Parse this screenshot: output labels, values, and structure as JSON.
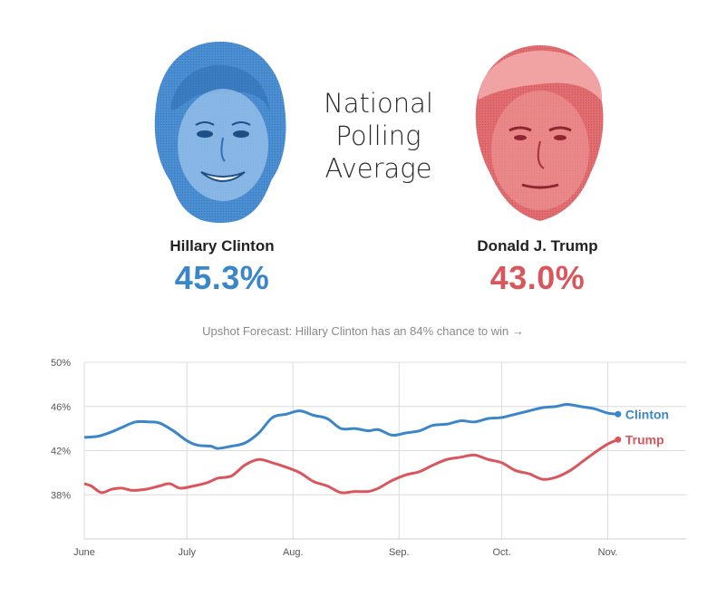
{
  "headline": {
    "line1": "National",
    "line2": "Polling",
    "line3": "Average"
  },
  "candidates": {
    "clinton": {
      "name": "Hillary Clinton",
      "pct": "45.3%",
      "color": "#3b86c9"
    },
    "trump": {
      "name": "Donald J. Trump",
      "pct": "43.0%",
      "color": "#d9575c"
    }
  },
  "forecast_link": "Upshot Forecast: Hillary Clinton has an 84% chance to win →",
  "chart_data": {
    "type": "line",
    "x_axis": "date",
    "ylim": [
      34,
      50
    ],
    "y_ticks": [
      50,
      46,
      42,
      38
    ],
    "y_tick_labels": [
      "50%",
      "46%",
      "42%",
      "38%"
    ],
    "x_ticks": [
      "2016-06-01",
      "2016-07-01",
      "2016-08-01",
      "2016-09-01",
      "2016-10-01",
      "2016-11-01"
    ],
    "x_tick_labels": [
      "June",
      "July",
      "Aug.",
      "Sep.",
      "Oct.",
      "Nov."
    ],
    "grid": true,
    "legend": "inline-right",
    "series": [
      {
        "name": "Clinton",
        "color": "#3b86c9",
        "points": [
          [
            "2016-06-01",
            43.2
          ],
          [
            "2016-06-05",
            43.3
          ],
          [
            "2016-06-09",
            43.7
          ],
          [
            "2016-06-12",
            44.1
          ],
          [
            "2016-06-16",
            44.6
          ],
          [
            "2016-06-20",
            44.6
          ],
          [
            "2016-06-23",
            44.5
          ],
          [
            "2016-06-27",
            43.8
          ],
          [
            "2016-07-01",
            42.9
          ],
          [
            "2016-07-04",
            42.5
          ],
          [
            "2016-07-08",
            42.4
          ],
          [
            "2016-07-10",
            42.2
          ],
          [
            "2016-07-14",
            42.4
          ],
          [
            "2016-07-18",
            42.7
          ],
          [
            "2016-07-22",
            43.6
          ],
          [
            "2016-07-26",
            45.0
          ],
          [
            "2016-07-30",
            45.3
          ],
          [
            "2016-08-03",
            45.6
          ],
          [
            "2016-08-07",
            45.2
          ],
          [
            "2016-08-11",
            44.9
          ],
          [
            "2016-08-15",
            44.0
          ],
          [
            "2016-08-19",
            44.0
          ],
          [
            "2016-08-23",
            43.8
          ],
          [
            "2016-08-26",
            43.9
          ],
          [
            "2016-08-30",
            43.4
          ],
          [
            "2016-09-03",
            43.6
          ],
          [
            "2016-09-07",
            43.8
          ],
          [
            "2016-09-11",
            44.3
          ],
          [
            "2016-09-15",
            44.4
          ],
          [
            "2016-09-19",
            44.7
          ],
          [
            "2016-09-23",
            44.6
          ],
          [
            "2016-09-27",
            44.9
          ],
          [
            "2016-10-01",
            45.0
          ],
          [
            "2016-10-05",
            45.3
          ],
          [
            "2016-10-09",
            45.6
          ],
          [
            "2016-10-13",
            45.9
          ],
          [
            "2016-10-17",
            46.0
          ],
          [
            "2016-10-20",
            46.2
          ],
          [
            "2016-10-24",
            46.0
          ],
          [
            "2016-10-28",
            45.8
          ],
          [
            "2016-11-01",
            45.4
          ],
          [
            "2016-11-04",
            45.3
          ]
        ],
        "end_label": "Clinton"
      },
      {
        "name": "Trump",
        "color": "#d9575c",
        "points": [
          [
            "2016-06-01",
            39.0
          ],
          [
            "2016-06-03",
            38.8
          ],
          [
            "2016-06-06",
            38.2
          ],
          [
            "2016-06-09",
            38.5
          ],
          [
            "2016-06-12",
            38.6
          ],
          [
            "2016-06-15",
            38.4
          ],
          [
            "2016-06-19",
            38.5
          ],
          [
            "2016-06-23",
            38.8
          ],
          [
            "2016-06-26",
            39.0
          ],
          [
            "2016-06-29",
            38.6
          ],
          [
            "2016-07-03",
            38.8
          ],
          [
            "2016-07-07",
            39.1
          ],
          [
            "2016-07-10",
            39.5
          ],
          [
            "2016-07-14",
            39.7
          ],
          [
            "2016-07-18",
            40.7
          ],
          [
            "2016-07-22",
            41.2
          ],
          [
            "2016-07-26",
            40.9
          ],
          [
            "2016-07-30",
            40.5
          ],
          [
            "2016-08-03",
            40.0
          ],
          [
            "2016-08-07",
            39.2
          ],
          [
            "2016-08-11",
            38.8
          ],
          [
            "2016-08-15",
            38.2
          ],
          [
            "2016-08-19",
            38.3
          ],
          [
            "2016-08-23",
            38.3
          ],
          [
            "2016-08-26",
            38.6
          ],
          [
            "2016-08-30",
            39.3
          ],
          [
            "2016-09-03",
            39.8
          ],
          [
            "2016-09-07",
            40.1
          ],
          [
            "2016-09-11",
            40.7
          ],
          [
            "2016-09-15",
            41.2
          ],
          [
            "2016-09-19",
            41.4
          ],
          [
            "2016-09-23",
            41.6
          ],
          [
            "2016-09-27",
            41.2
          ],
          [
            "2016-10-01",
            40.9
          ],
          [
            "2016-10-05",
            40.2
          ],
          [
            "2016-10-09",
            39.9
          ],
          [
            "2016-10-13",
            39.4
          ],
          [
            "2016-10-17",
            39.6
          ],
          [
            "2016-10-21",
            40.2
          ],
          [
            "2016-10-25",
            41.1
          ],
          [
            "2016-10-29",
            42.0
          ],
          [
            "2016-11-01",
            42.6
          ],
          [
            "2016-11-04",
            43.0
          ]
        ],
        "end_label": "Trump"
      }
    ]
  }
}
